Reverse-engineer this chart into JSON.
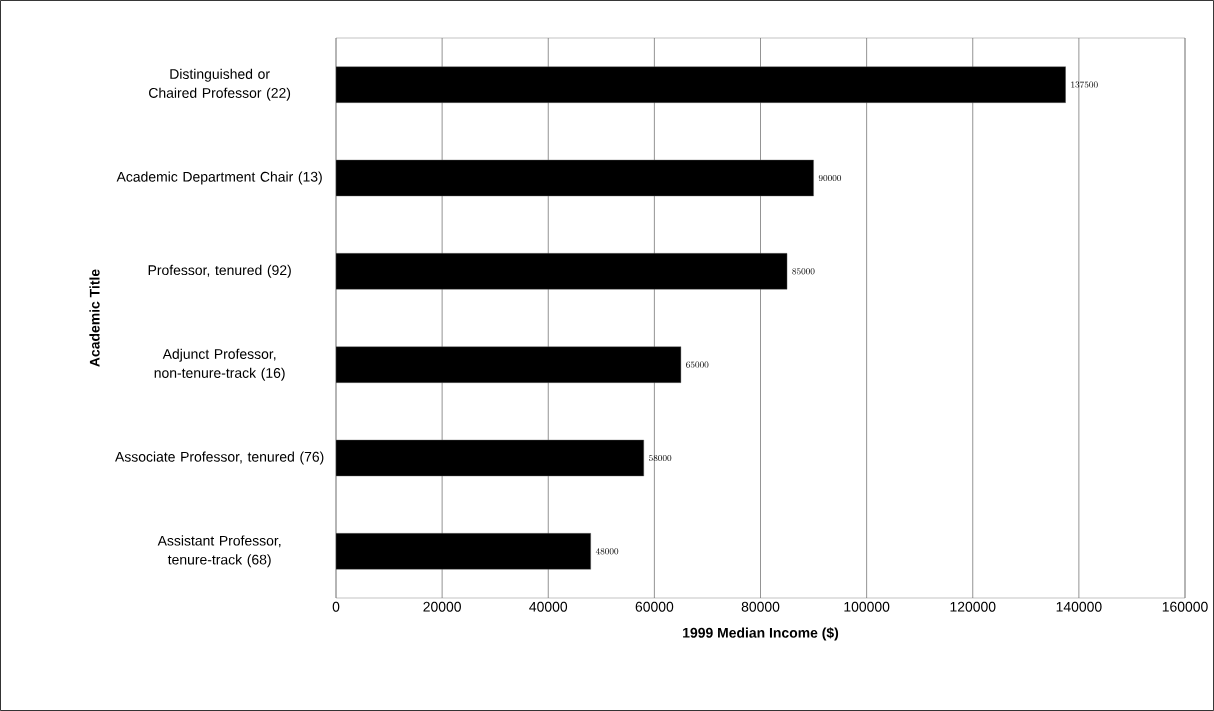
{
  "chart_data": {
    "type": "bar",
    "orientation": "horizontal",
    "categories": [
      "Distinguished or Chaired Professor (22)",
      "Academic Department Chair (13)",
      "Professor, tenured (92)",
      "Adjunct Professor, non-tenure-track (16)",
      "Associate Professor, tenured (76)",
      "Assistant Professor, tenure-track (68)"
    ],
    "values": [
      137500,
      90000,
      85000,
      65000,
      58000,
      48000
    ],
    "color": "#000000",
    "xlabel": "1999 Median Income ($)",
    "ylabel": "Academic Title",
    "xlim": [
      0,
      160000
    ],
    "xticks": [
      0,
      20000,
      40000,
      60000,
      80000,
      100000,
      120000,
      140000,
      160000
    ],
    "grid": "x",
    "data_labels": true
  }
}
